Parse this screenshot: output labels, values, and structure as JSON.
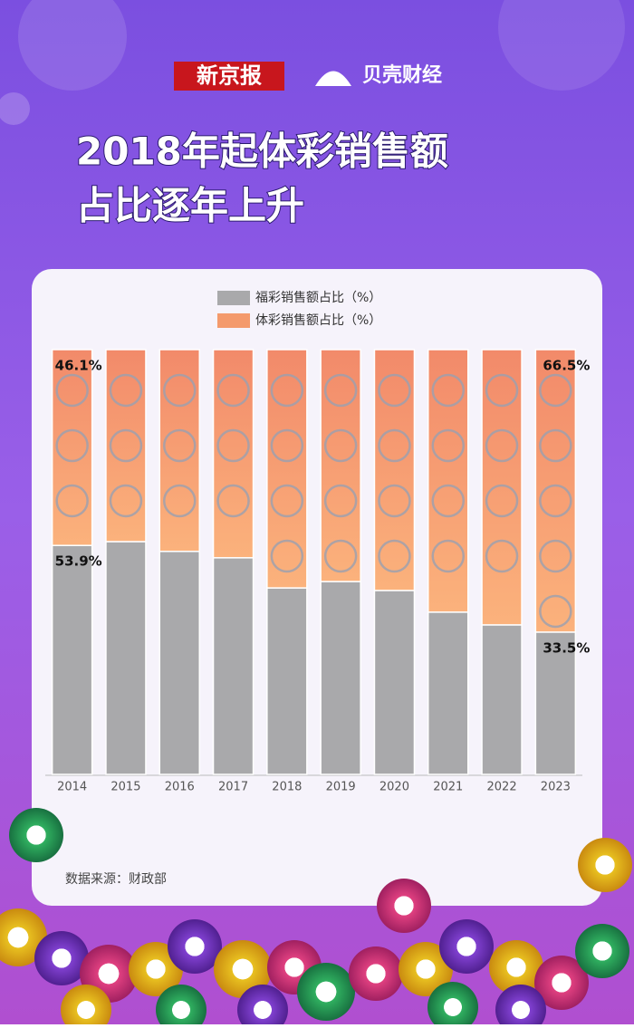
{
  "header": {
    "brand": "新京报",
    "partner": "贝壳财经"
  },
  "chart_data": {
    "type": "stacked-bar",
    "title": [
      "2018年起体彩销售额",
      "占比逐年上升"
    ],
    "categories": [
      "2014",
      "2015",
      "2016",
      "2017",
      "2018",
      "2019",
      "2020",
      "2021",
      "2022",
      "2023"
    ],
    "series": [
      {
        "name": "福彩销售额占比（%）",
        "color": "#a9a9ab",
        "values": [
          53.9,
          54.8,
          52.5,
          51.0,
          43.9,
          45.4,
          43.3,
          38.2,
          35.2,
          33.5
        ],
        "value_labels": [
          "53.9%",
          null,
          null,
          null,
          null,
          null,
          null,
          null,
          null,
          "33.5%"
        ]
      },
      {
        "name": "体彩销售额占比（%）",
        "color": "#f49a6c",
        "values": [
          46.1,
          45.2,
          47.5,
          49.0,
          56.1,
          54.6,
          56.7,
          61.8,
          64.8,
          66.5
        ],
        "value_labels": [
          "46.1%",
          null,
          null,
          null,
          null,
          null,
          null,
          null,
          null,
          "66.5%"
        ]
      }
    ],
    "ylim": [
      0,
      100
    ],
    "source": "数据来源：财政部"
  }
}
